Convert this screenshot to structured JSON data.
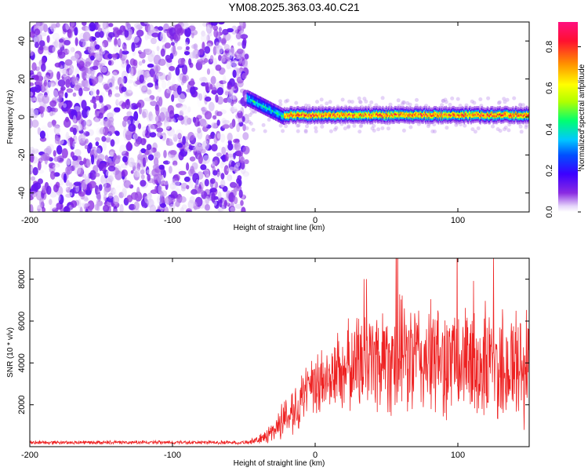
{
  "title": "YM08.2025.363.03.40.C21",
  "chart_data": [
    {
      "type": "heatmap",
      "title": "YM08.2025.363.03.40.C21",
      "xlabel": "Height of straight line (km)",
      "ylabel": "Frequency (Hz)",
      "xlim": [
        -200,
        150
      ],
      "ylim": [
        -50,
        50
      ],
      "x_ticks": [
        -200,
        -100,
        0,
        100
      ],
      "y_ticks": [
        -40,
        -20,
        0,
        20,
        40
      ],
      "colorbar": {
        "label": "Normalized spectral amplitude",
        "range": [
          0,
          0.92
        ],
        "ticks": [
          0.0,
          0.2,
          0.4,
          0.6,
          0.8
        ],
        "colormap": [
          "#ffffff",
          "#dcc8f5",
          "#8a2be2",
          "#3c00ff",
          "#0050ff",
          "#00c8ff",
          "#00ff70",
          "#b0ff00",
          "#ffff00",
          "#ff9000",
          "#ff1030",
          "#ff1080"
        ]
      },
      "regions": [
        {
          "name": "noise",
          "x_range": [
            -200,
            -48
          ],
          "freq_range": [
            -50,
            50
          ],
          "amplitude_range": [
            0.0,
            0.15
          ]
        },
        {
          "name": "transition",
          "x_range": [
            -48,
            -22
          ],
          "freq_start": 10,
          "freq_end": 0,
          "amplitude_range": [
            0.2,
            0.5
          ]
        },
        {
          "name": "signal",
          "x_range": [
            -22,
            150
          ],
          "freq_center": 1,
          "freq_halfwidth": 4,
          "amplitude_range": [
            0.4,
            0.92
          ]
        }
      ]
    },
    {
      "type": "line",
      "xlabel": "Height of straight line (km)",
      "ylabel": "SNR (10 * v/v)",
      "xlim": [
        -200,
        150
      ],
      "ylim": [
        0,
        9000
      ],
      "x_ticks": [
        -200,
        -100,
        0,
        100
      ],
      "y_ticks": [
        2000,
        4000,
        6000,
        8000
      ],
      "color": "#ee2222",
      "series": [
        {
          "name": "SNR",
          "x": [
            -200,
            -150,
            -100,
            -50,
            -40,
            -30,
            -20,
            -10,
            0,
            10,
            20,
            30,
            40,
            50,
            60,
            70,
            80,
            90,
            100,
            110,
            120,
            130,
            140,
            150
          ],
          "values": [
            200,
            200,
            200,
            200,
            300,
            700,
            1500,
            2200,
            2800,
            3300,
            3700,
            4000,
            4200,
            4300,
            4300,
            4200,
            4100,
            4100,
            4000,
            3900,
            3900,
            3800,
            3800,
            3700
          ],
          "spread": [
            100,
            100,
            100,
            100,
            200,
            600,
            1200,
            1500,
            1800,
            2000,
            2300,
            2700,
            3000,
            3200,
            3200,
            3200,
            3100,
            3100,
            3100,
            3100,
            3200,
            3300,
            3500,
            3500
          ]
        }
      ]
    }
  ]
}
